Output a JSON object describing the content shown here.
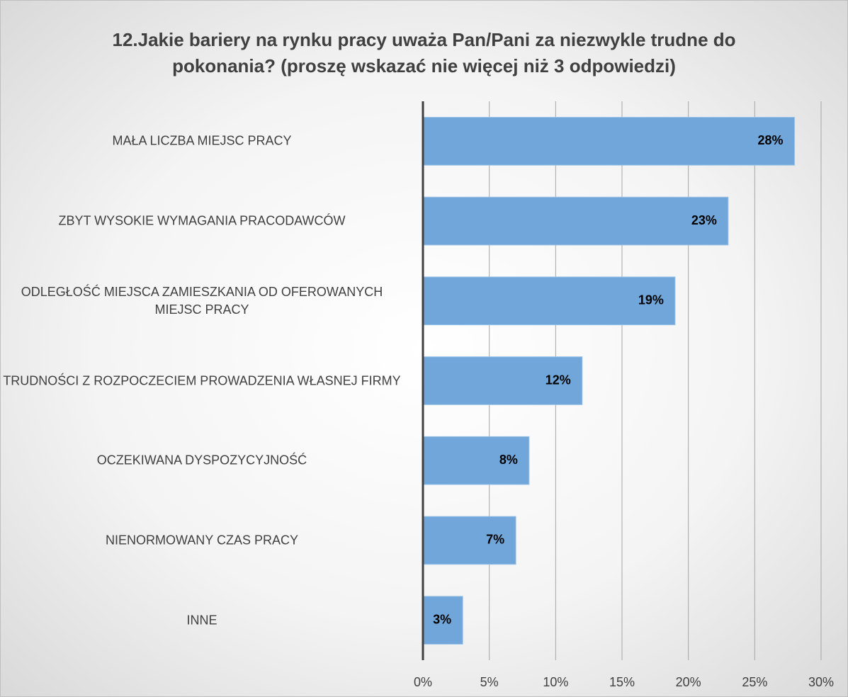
{
  "chart_data": {
    "type": "barh",
    "title": "12.Jakie bariery na rynku pracy uważa Pan/Pani za niezwykle trudne do pokonania? (proszę wskazać nie więcej niż 3 odpowiedzi)",
    "categories": [
      "MAŁA LICZBA MIEJSC PRACY",
      "ZBYT WYSOKIE WYMAGANIA PRACODAWCÓW",
      "ODLEGŁOŚĆ MIEJSCA ZAMIESZKANIA OD OFEROWANYCH MIEJSC PRACY",
      "TRUDNOŚCI Z ROZPOCZECIEM PROWADZENIA WŁASNEJ FIRMY",
      "OCZEKIWANA DYSPOZYCYJNOŚĆ",
      "NIENORMOWANY CZAS PRACY",
      "INNE"
    ],
    "values": [
      28,
      23,
      19,
      12,
      8,
      7,
      3
    ],
    "value_labels": [
      "28%",
      "23%",
      "19%",
      "12%",
      "8%",
      "7%",
      "3%"
    ],
    "color": "#70a6da",
    "xlim": [
      0,
      30
    ],
    "xticks": [
      {
        "value": 0,
        "label": "0%"
      },
      {
        "value": 5,
        "label": "5%"
      },
      {
        "value": 10,
        "label": "10%"
      },
      {
        "value": 15,
        "label": "15%"
      },
      {
        "value": 20,
        "label": "20%"
      },
      {
        "value": 25,
        "label": "25%"
      },
      {
        "value": 30,
        "label": "30%"
      }
    ],
    "grid": true
  }
}
